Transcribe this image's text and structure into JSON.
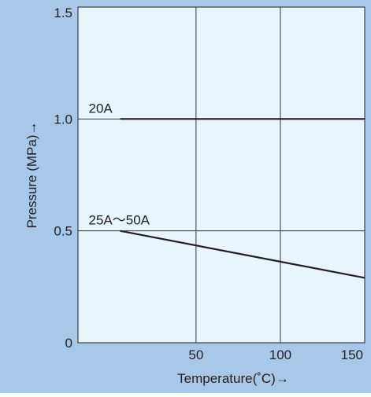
{
  "chart_data": {
    "type": "line",
    "xlabel": "Temperature(˚C)→",
    "ylabel": "Pressure (MPa)→",
    "xlim": [
      -20,
      150
    ],
    "ylim": [
      0,
      1.5
    ],
    "x_ticks": [
      {
        "value": 50,
        "label": "50"
      },
      {
        "value": 100,
        "label": "100"
      },
      {
        "value": 150,
        "label": "150"
      }
    ],
    "y_ticks": [
      {
        "value": 0,
        "label": "0"
      },
      {
        "value": 0.5,
        "label": "0.5"
      },
      {
        "value": 1.0,
        "label": "1.0"
      },
      {
        "value": 1.5,
        "label": "1.5"
      }
    ],
    "grid": true,
    "legend": "none",
    "series": [
      {
        "name": "20A",
        "x": [
          5,
          150
        ],
        "y": [
          1.0,
          1.0
        ]
      },
      {
        "name": "25A～50A",
        "x": [
          5,
          150
        ],
        "y": [
          0.5,
          0.29
        ]
      }
    ],
    "colors": {
      "frame_background": "#a7c8e8",
      "plot_background": "#e8f5fb",
      "grid": "#333333",
      "line": "#231f20",
      "text": "#231f20"
    }
  }
}
